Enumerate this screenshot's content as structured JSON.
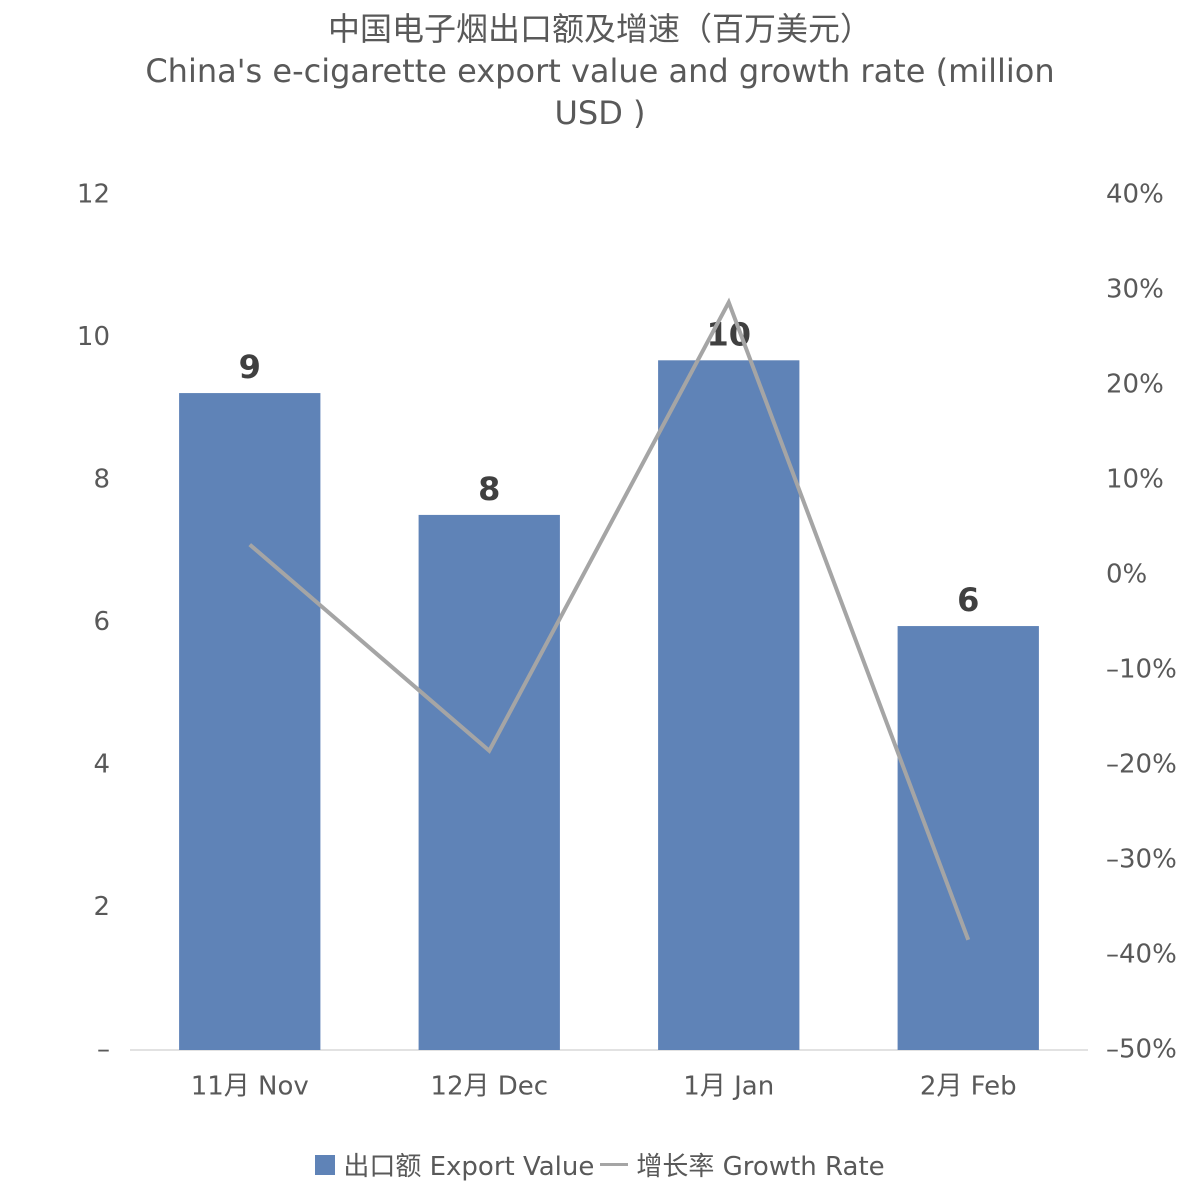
{
  "chart_data": {
    "type": "bar",
    "title": "中国电子烟出口额及增速（百万美元）",
    "subtitle": "China's e-cigarette export value and growth rate (million USD )",
    "categories": [
      "11月 Nov",
      "12月 Dec",
      "1月 Jan",
      "2月 Feb"
    ],
    "series": [
      {
        "name": "出口额 Export Value",
        "type": "bar",
        "color": "#5f83b7",
        "values": [
          9.22,
          7.51,
          9.68,
          5.95
        ],
        "value_labels": [
          "9",
          "8",
          "10",
          "6"
        ]
      },
      {
        "name": "增长率 Growth Rate",
        "type": "line",
        "axis": "y2",
        "color": "#a5a5a5",
        "values": [
          3.2,
          -18.5,
          28.7,
          -38.4
        ]
      }
    ],
    "ylim": [
      0,
      12
    ],
    "yticks": [
      {
        "value": 0,
        "label": "–"
      },
      2,
      4,
      6,
      8,
      10,
      12
    ],
    "y2lim": [
      -50,
      40
    ],
    "y2ticks": [
      {
        "value": -50,
        "label": "–50%"
      },
      {
        "value": -40,
        "label": "–40%"
      },
      {
        "value": -30,
        "label": "–30%"
      },
      {
        "value": -20,
        "label": "–20%"
      },
      {
        "value": -10,
        "label": "–10%"
      },
      {
        "value": 0,
        "label": "0%"
      },
      {
        "value": 10,
        "label": "10%"
      },
      {
        "value": 20,
        "label": "20%"
      },
      {
        "value": 30,
        "label": "30%"
      },
      {
        "value": 40,
        "label": "40%"
      }
    ]
  }
}
